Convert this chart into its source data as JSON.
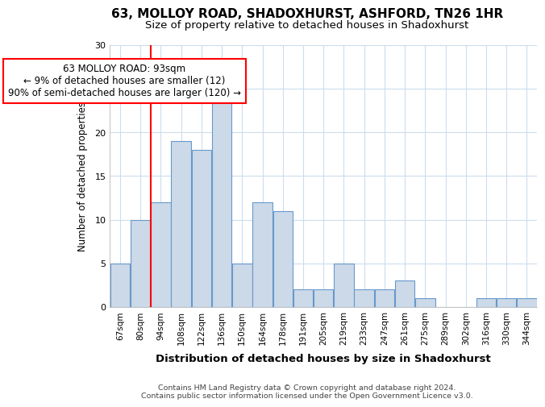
{
  "title1": "63, MOLLOY ROAD, SHADOXHURST, ASHFORD, TN26 1HR",
  "title2": "Size of property relative to detached houses in Shadoxhurst",
  "xlabel": "Distribution of detached houses by size in Shadoxhurst",
  "ylabel": "Number of detached properties",
  "footer1": "Contains HM Land Registry data © Crown copyright and database right 2024.",
  "footer2": "Contains public sector information licensed under the Open Government Licence v3.0.",
  "bins": [
    "67sqm",
    "80sqm",
    "94sqm",
    "108sqm",
    "122sqm",
    "136sqm",
    "150sqm",
    "164sqm",
    "178sqm",
    "191sqm",
    "205sqm",
    "219sqm",
    "233sqm",
    "247sqm",
    "261sqm",
    "275sqm",
    "289sqm",
    "302sqm",
    "316sqm",
    "330sqm",
    "344sqm"
  ],
  "values": [
    5,
    10,
    12,
    19,
    18,
    25,
    5,
    12,
    11,
    2,
    2,
    5,
    2,
    2,
    3,
    1,
    0,
    0,
    1,
    1,
    1
  ],
  "bar_color": "#ccd9e8",
  "bar_edge_color": "#6699cc",
  "red_line_index": 2,
  "annotation_line1": "63 MOLLOY ROAD: 93sqm",
  "annotation_line2": "← 9% of detached houses are smaller (12)",
  "annotation_line3": "90% of semi-detached houses are larger (120) →",
  "annotation_box_color": "white",
  "annotation_box_edge": "red",
  "ylim": [
    0,
    30
  ],
  "yticks": [
    0,
    5,
    10,
    15,
    20,
    25,
    30
  ],
  "bg_color": "white",
  "plot_bg_color": "white",
  "grid_color": "#ccddee"
}
